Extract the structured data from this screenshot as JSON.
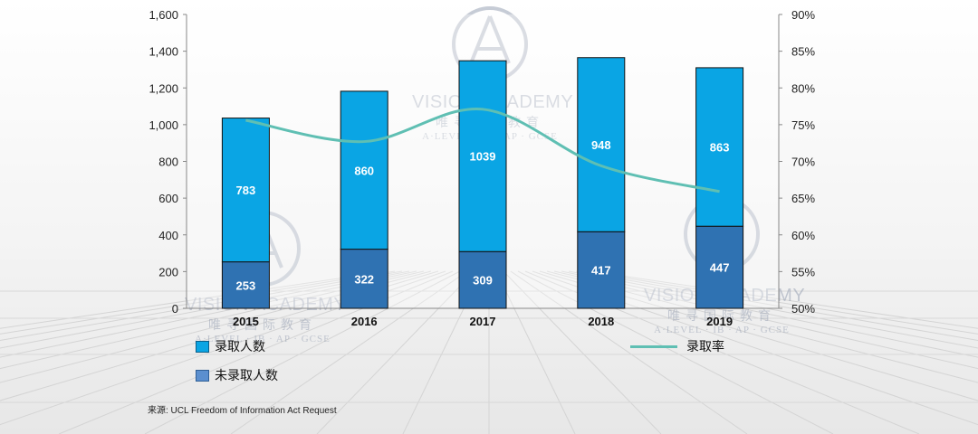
{
  "chart_data": {
    "type": "bar",
    "stacked": true,
    "categories": [
      "2015",
      "2016",
      "2017",
      "2018",
      "2019"
    ],
    "series": [
      {
        "name": "录取人数",
        "values": [
          783,
          860,
          1039,
          948,
          863
        ],
        "color": "#0aa5e4"
      },
      {
        "name": "未录取人数",
        "values": [
          253,
          322,
          309,
          417,
          447
        ],
        "color": "#2f72b2"
      }
    ],
    "line_series": {
      "name": "录取率",
      "values": [
        0.756,
        0.727,
        0.771,
        0.694,
        0.659
      ],
      "color": "#5fbfb3",
      "axis": "right"
    },
    "ylim": [
      0,
      1600
    ],
    "y_ticks": [
      "0",
      "200",
      "400",
      "600",
      "800",
      "1,000",
      "1,200",
      "1,400",
      "1,600"
    ],
    "y2lim": [
      0.5,
      0.9
    ],
    "y2_ticks": [
      "50%",
      "55%",
      "60%",
      "65%",
      "70%",
      "75%",
      "80%",
      "85%",
      "90%"
    ],
    "grid": false,
    "legend_position": "bottom"
  },
  "source_note": "来源:  UCL Freedom of Information Act Request",
  "watermark": {
    "title": "VISION ACADEMY",
    "subtitle": "唯寻国际教育",
    "tagline": "A·LEVEL · IB · AP · GCSE"
  }
}
